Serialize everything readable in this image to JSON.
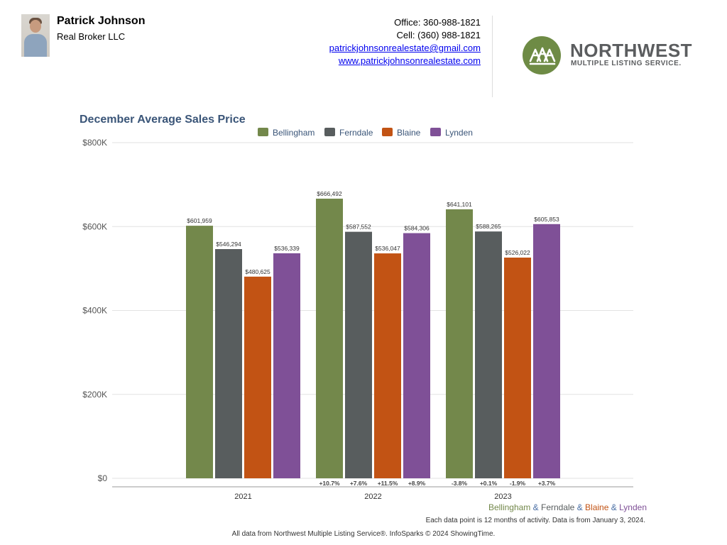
{
  "header": {
    "agent_name": "Patrick Johnson",
    "agent_company": "Real Broker LLC",
    "office": "Office: 360-988-1821",
    "cell": "Cell: (360) 988-1821",
    "email": "patrickjohnsonrealestate@gmail.com",
    "website": "www.patrickjohnsonrealestate.com",
    "logo_line1": "NORTHWEST",
    "logo_line2": "MULTIPLE LISTING SERVICE.",
    "logo_color": "#6e8b45"
  },
  "chart_data": {
    "type": "bar",
    "title": "December Average Sales Price",
    "categories": [
      "2021",
      "2022",
      "2023"
    ],
    "ylim": [
      0,
      800000
    ],
    "yticks": [
      0,
      200000,
      400000,
      600000,
      800000
    ],
    "ytick_labels": [
      "$0",
      "$200K",
      "$400K",
      "$600K",
      "$800K"
    ],
    "grid": true,
    "legend_position": "top-center",
    "series": [
      {
        "name": "Bellingham",
        "color": "#73884b",
        "values": [
          601959,
          666492,
          641101
        ],
        "labels": [
          "$601,959",
          "$666,492",
          "$641,101"
        ],
        "changes": [
          "",
          "+10.7%",
          "-3.8%"
        ]
      },
      {
        "name": "Ferndale",
        "color": "#585d5e",
        "values": [
          546294,
          587552,
          588265
        ],
        "labels": [
          "$546,294",
          "$587,552",
          "$588,265"
        ],
        "changes": [
          "",
          "+7.6%",
          "+0.1%"
        ]
      },
      {
        "name": "Blaine",
        "color": "#c25314",
        "values": [
          480625,
          536047,
          526022
        ],
        "labels": [
          "$480,625",
          "$536,047",
          "$526,022"
        ],
        "changes": [
          "",
          "+11.5%",
          "-1.9%"
        ]
      },
      {
        "name": "Lynden",
        "color": "#7f5097",
        "values": [
          536339,
          584306,
          605853
        ],
        "labels": [
          "$536,339",
          "$584,306",
          "$605,853"
        ],
        "changes": [
          "",
          "+8.9%",
          "+3.7%"
        ]
      }
    ],
    "footer_legend": {
      "items": [
        "Bellingham",
        "Ferndale",
        "Blaine",
        "Lynden"
      ],
      "separator": "&",
      "separator_color": "#4a6fa5"
    },
    "note": "Each data point is 12 months of activity. Data is from January 3, 2024.",
    "source": "All data from Northwest Multiple Listing Service®. InfoSparks © 2024 ShowingTime."
  },
  "colors": {
    "title": "#3a5578",
    "axis_text": "#555555",
    "grid": "#e2e2e2",
    "axis": "#9a9a9a"
  }
}
